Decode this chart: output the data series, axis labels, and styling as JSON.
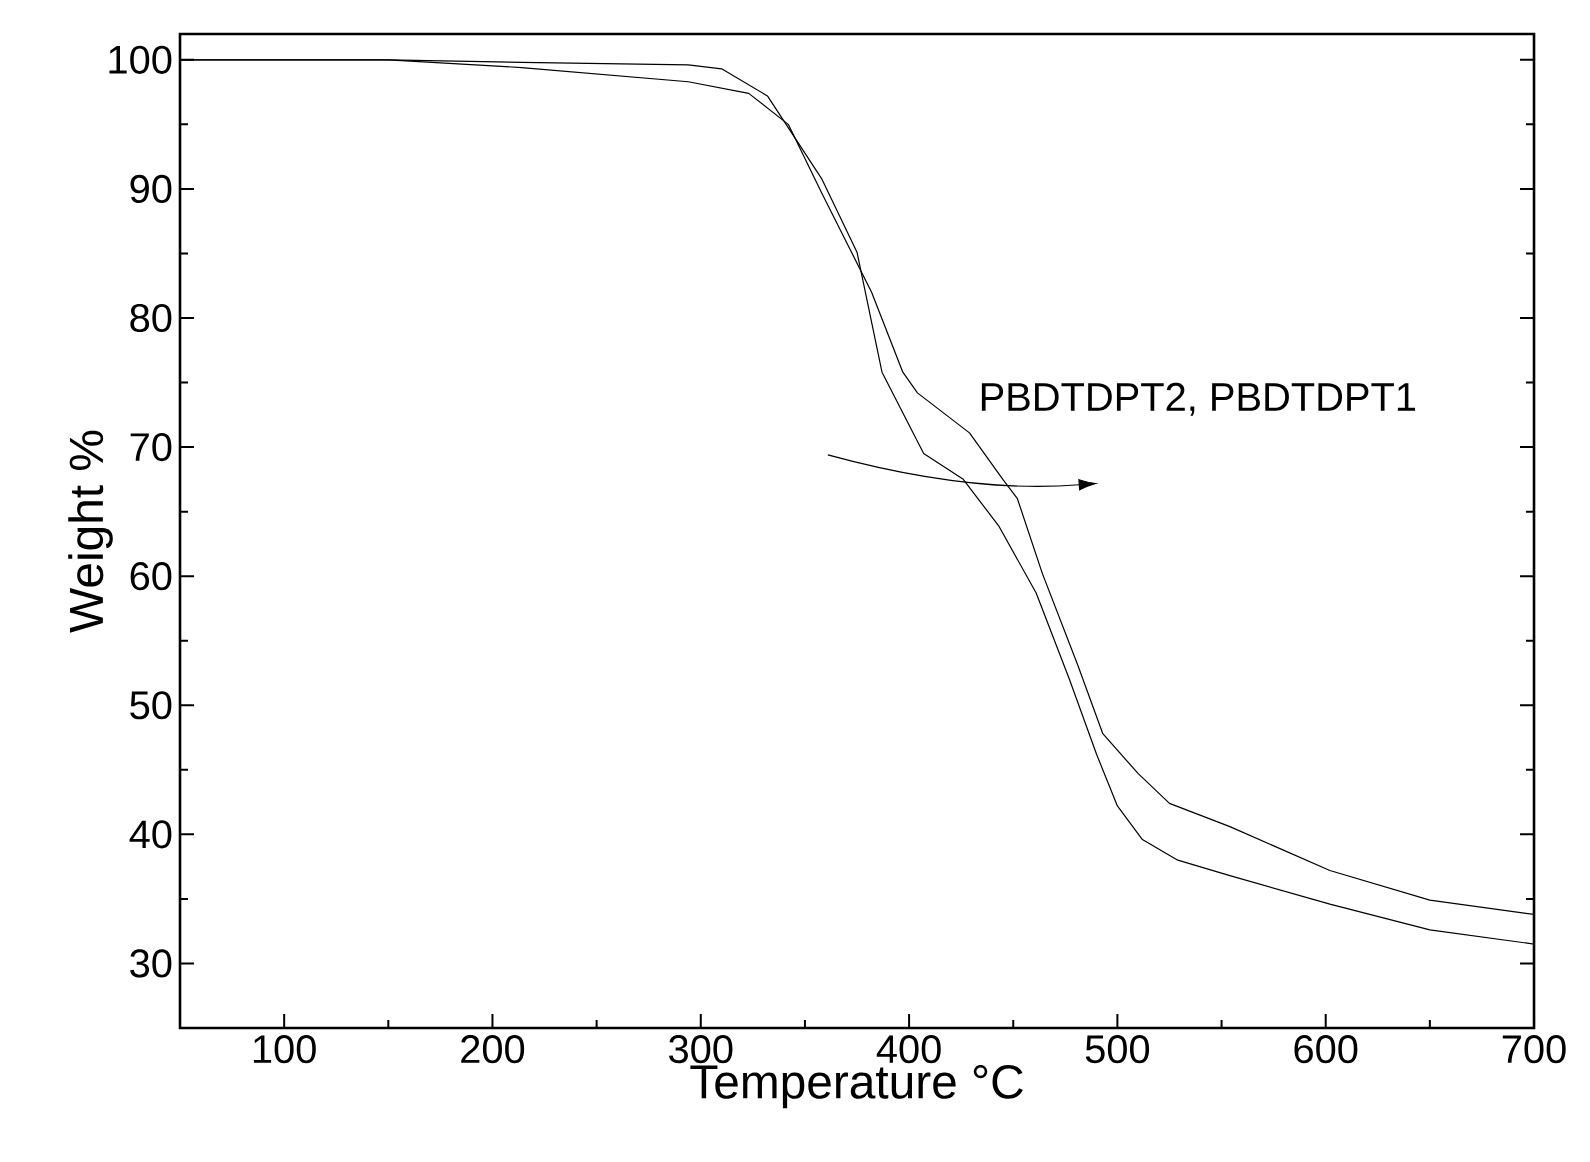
{
  "chart_data": {
    "type": "line",
    "xlabel": "Temperature °C",
    "ylabel": "Weight %",
    "xlim": [
      50,
      700
    ],
    "ylim": [
      25,
      102
    ],
    "xticks": [
      100,
      200,
      300,
      400,
      500,
      600,
      700
    ],
    "yticks": [
      30,
      40,
      50,
      60,
      70,
      80,
      90,
      100
    ],
    "marker": "none",
    "line_style": "solid",
    "annotations": [
      "PBDTDPT2, PBDTDPT1"
    ],
    "series": [
      {
        "color": "#000000",
        "x": [
          50,
          150,
          214,
          294,
          310,
          332,
          358,
          375,
          387,
          407,
          426,
          443,
          461,
          477,
          490,
          500,
          512,
          529,
          554,
          602,
          650,
          700
        ],
        "values": [
          100,
          100,
          99.8,
          99.6,
          99.3,
          97.2,
          90.8,
          85.1,
          75.8,
          69.5,
          67.5,
          63.9,
          58.7,
          52.0,
          46.2,
          42.2,
          39.6,
          38.0,
          36.8,
          34.6,
          32.6,
          31.5
        ]
      },
      {
        "color": "#000000",
        "x": [
          50,
          150,
          214,
          294,
          323,
          342,
          358,
          382,
          397,
          404,
          429,
          445,
          452,
          464,
          481,
          493,
          510,
          525,
          554,
          602,
          650,
          700
        ],
        "values": [
          100,
          100,
          99.4,
          98.3,
          97.4,
          95.0,
          89.7,
          82.0,
          75.8,
          74.2,
          71.1,
          67.5,
          66.0,
          60.2,
          53.1,
          47.8,
          44.7,
          42.4,
          40.6,
          37.2,
          34.9,
          33.8
        ]
      }
    ]
  }
}
